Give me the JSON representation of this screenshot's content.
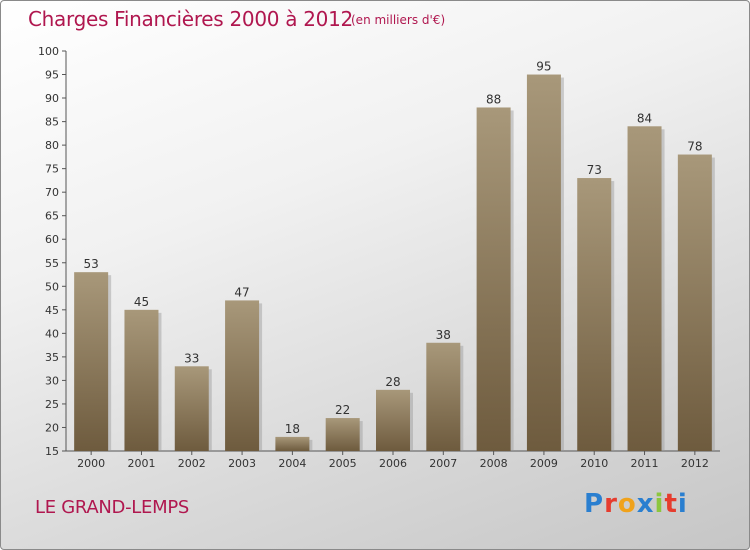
{
  "header": {
    "title": "Charges Financières 2000 à 2012",
    "subtitle": "(en milliers d'€)"
  },
  "footer": {
    "commune": "LE GRAND-LEMPS",
    "logo_text": "Proxiti"
  },
  "colors": {
    "title": "#b0174f",
    "bar_top": "#a8987a",
    "bar_bottom": "#6e5b3e",
    "axis": "#555555"
  },
  "chart_data": {
    "type": "bar",
    "title": "Charges Financières 2000 à 2012",
    "subtitle": "(en milliers d'€)",
    "xlabel": "",
    "ylabel": "",
    "categories": [
      "2000",
      "2001",
      "2002",
      "2003",
      "2004",
      "2005",
      "2006",
      "2007",
      "2008",
      "2009",
      "2010",
      "2011",
      "2012"
    ],
    "values": [
      53,
      45,
      33,
      47,
      18,
      22,
      28,
      38,
      88,
      95,
      73,
      84,
      78
    ],
    "ylim": [
      15,
      100
    ],
    "yticks": [
      15,
      20,
      25,
      30,
      35,
      40,
      45,
      50,
      55,
      60,
      65,
      70,
      75,
      80,
      85,
      90,
      95,
      100
    ],
    "grid": false,
    "data_labels": true
  }
}
